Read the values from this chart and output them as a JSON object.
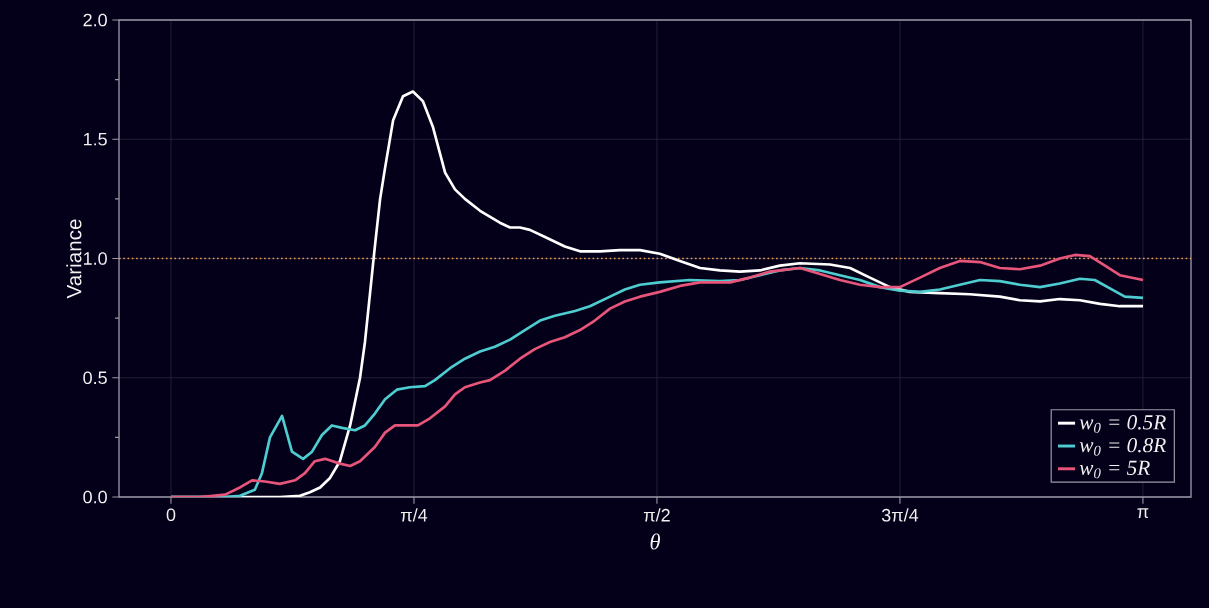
{
  "chart_data": {
    "type": "line",
    "xlabel": "θ",
    "ylabel": "Variance",
    "xlim": [
      -0.168,
      3.297
    ],
    "ylim": [
      0,
      2.0
    ],
    "xticks": [
      {
        "value": 0,
        "label": "0"
      },
      {
        "value": 0.7854,
        "label": "π/4"
      },
      {
        "value": 1.5708,
        "label": "π/2"
      },
      {
        "value": 2.3562,
        "label": "3π/4"
      },
      {
        "value": 3.1416,
        "label": "π"
      }
    ],
    "yticks": [
      {
        "value": 0,
        "label": "0.0"
      },
      {
        "value": 0.5,
        "label": "0.5"
      },
      {
        "value": 1.0,
        "label": "1.0"
      },
      {
        "value": 1.5,
        "label": "1.5"
      },
      {
        "value": 2.0,
        "label": "2.0"
      }
    ],
    "grid": true,
    "legend": "bottom right",
    "marker": "none",
    "line_style": "solid",
    "ref_lines": [
      {
        "axis": "y",
        "value": 1.0,
        "color": "#f0a050",
        "line_style": "dotted"
      }
    ],
    "series": [
      {
        "name": "w$_{0}$ = 0.5R",
        "color": "#ffffff",
        "x": [
          0,
          0.352,
          0.417,
          0.449,
          0.482,
          0.514,
          0.546,
          0.579,
          0.611,
          0.627,
          0.643,
          0.659,
          0.676,
          0.692,
          0.718,
          0.75,
          0.782,
          0.814,
          0.847,
          0.886,
          0.918,
          0.95,
          0.999,
          1.063,
          1.096,
          1.128,
          1.16,
          1.209,
          1.273,
          1.322,
          1.387,
          1.451,
          1.516,
          1.58,
          1.645,
          1.71,
          1.774,
          1.839,
          1.904,
          1.968,
          2.033,
          2.13,
          2.195,
          2.259,
          2.324,
          2.388,
          2.485,
          2.582,
          2.679,
          2.744,
          2.809,
          2.873,
          2.938,
          3.003,
          3.067,
          3.142
        ],
        "values": [
          0,
          0,
          0.005,
          0.02,
          0.04,
          0.08,
          0.15,
          0.3,
          0.5,
          0.65,
          0.85,
          1.05,
          1.25,
          1.38,
          1.58,
          1.68,
          1.7,
          1.66,
          1.55,
          1.36,
          1.29,
          1.25,
          1.2,
          1.15,
          1.13,
          1.13,
          1.12,
          1.09,
          1.05,
          1.03,
          1.03,
          1.035,
          1.035,
          1.02,
          0.99,
          0.96,
          0.95,
          0.945,
          0.95,
          0.97,
          0.98,
          0.975,
          0.96,
          0.92,
          0.88,
          0.86,
          0.855,
          0.85,
          0.84,
          0.825,
          0.82,
          0.83,
          0.825,
          0.81,
          0.8,
          0.8
        ]
      },
      {
        "name": "w$_{0}$ = 0.8R",
        "color": "#4ecdd0",
        "x": [
          0,
          0.175,
          0.223,
          0.271,
          0.294,
          0.32,
          0.359,
          0.391,
          0.427,
          0.456,
          0.488,
          0.52,
          0.553,
          0.595,
          0.627,
          0.659,
          0.692,
          0.73,
          0.772,
          0.821,
          0.853,
          0.902,
          0.95,
          0.999,
          1.047,
          1.096,
          1.144,
          1.193,
          1.241,
          1.306,
          1.354,
          1.419,
          1.467,
          1.516,
          1.58,
          1.677,
          1.774,
          1.839,
          1.904,
          1.968,
          2.033,
          2.098,
          2.162,
          2.227,
          2.292,
          2.356,
          2.421,
          2.485,
          2.55,
          2.615,
          2.679,
          2.744,
          2.809,
          2.873,
          2.938,
          2.986,
          3.035,
          3.083,
          3.142
        ],
        "values": [
          0,
          0,
          0.005,
          0.03,
          0.1,
          0.25,
          0.34,
          0.19,
          0.16,
          0.19,
          0.26,
          0.3,
          0.29,
          0.28,
          0.3,
          0.35,
          0.41,
          0.45,
          0.46,
          0.465,
          0.49,
          0.54,
          0.58,
          0.61,
          0.63,
          0.66,
          0.7,
          0.74,
          0.76,
          0.78,
          0.8,
          0.84,
          0.87,
          0.89,
          0.9,
          0.91,
          0.905,
          0.91,
          0.93,
          0.95,
          0.96,
          0.95,
          0.93,
          0.91,
          0.88,
          0.865,
          0.86,
          0.87,
          0.89,
          0.91,
          0.905,
          0.89,
          0.88,
          0.895,
          0.915,
          0.91,
          0.875,
          0.84,
          0.835
        ]
      },
      {
        "name": "w$_{0}$ = 5R",
        "color": "#e8557a",
        "x": [
          0,
          0.094,
          0.175,
          0.223,
          0.262,
          0.304,
          0.352,
          0.401,
          0.433,
          0.465,
          0.498,
          0.546,
          0.579,
          0.611,
          0.659,
          0.692,
          0.724,
          0.756,
          0.798,
          0.837,
          0.886,
          0.918,
          0.95,
          0.999,
          1.031,
          1.08,
          1.128,
          1.176,
          1.225,
          1.273,
          1.322,
          1.37,
          1.419,
          1.467,
          1.516,
          1.58,
          1.645,
          1.71,
          1.807,
          1.871,
          1.936,
          2.033,
          2.098,
          2.162,
          2.227,
          2.292,
          2.356,
          2.421,
          2.485,
          2.55,
          2.615,
          2.679,
          2.744,
          2.809,
          2.873,
          2.922,
          2.97,
          3.019,
          3.067,
          3.142
        ],
        "values": [
          0,
          0,
          0.01,
          0.04,
          0.07,
          0.065,
          0.055,
          0.07,
          0.1,
          0.15,
          0.16,
          0.14,
          0.13,
          0.15,
          0.21,
          0.27,
          0.3,
          0.3,
          0.3,
          0.33,
          0.38,
          0.43,
          0.46,
          0.48,
          0.49,
          0.53,
          0.58,
          0.62,
          0.65,
          0.67,
          0.7,
          0.74,
          0.79,
          0.82,
          0.84,
          0.86,
          0.885,
          0.9,
          0.9,
          0.92,
          0.945,
          0.96,
          0.935,
          0.91,
          0.89,
          0.88,
          0.88,
          0.92,
          0.96,
          0.99,
          0.985,
          0.96,
          0.955,
          0.97,
          1.0,
          1.015,
          1.01,
          0.97,
          0.93,
          0.91
        ]
      }
    ]
  }
}
